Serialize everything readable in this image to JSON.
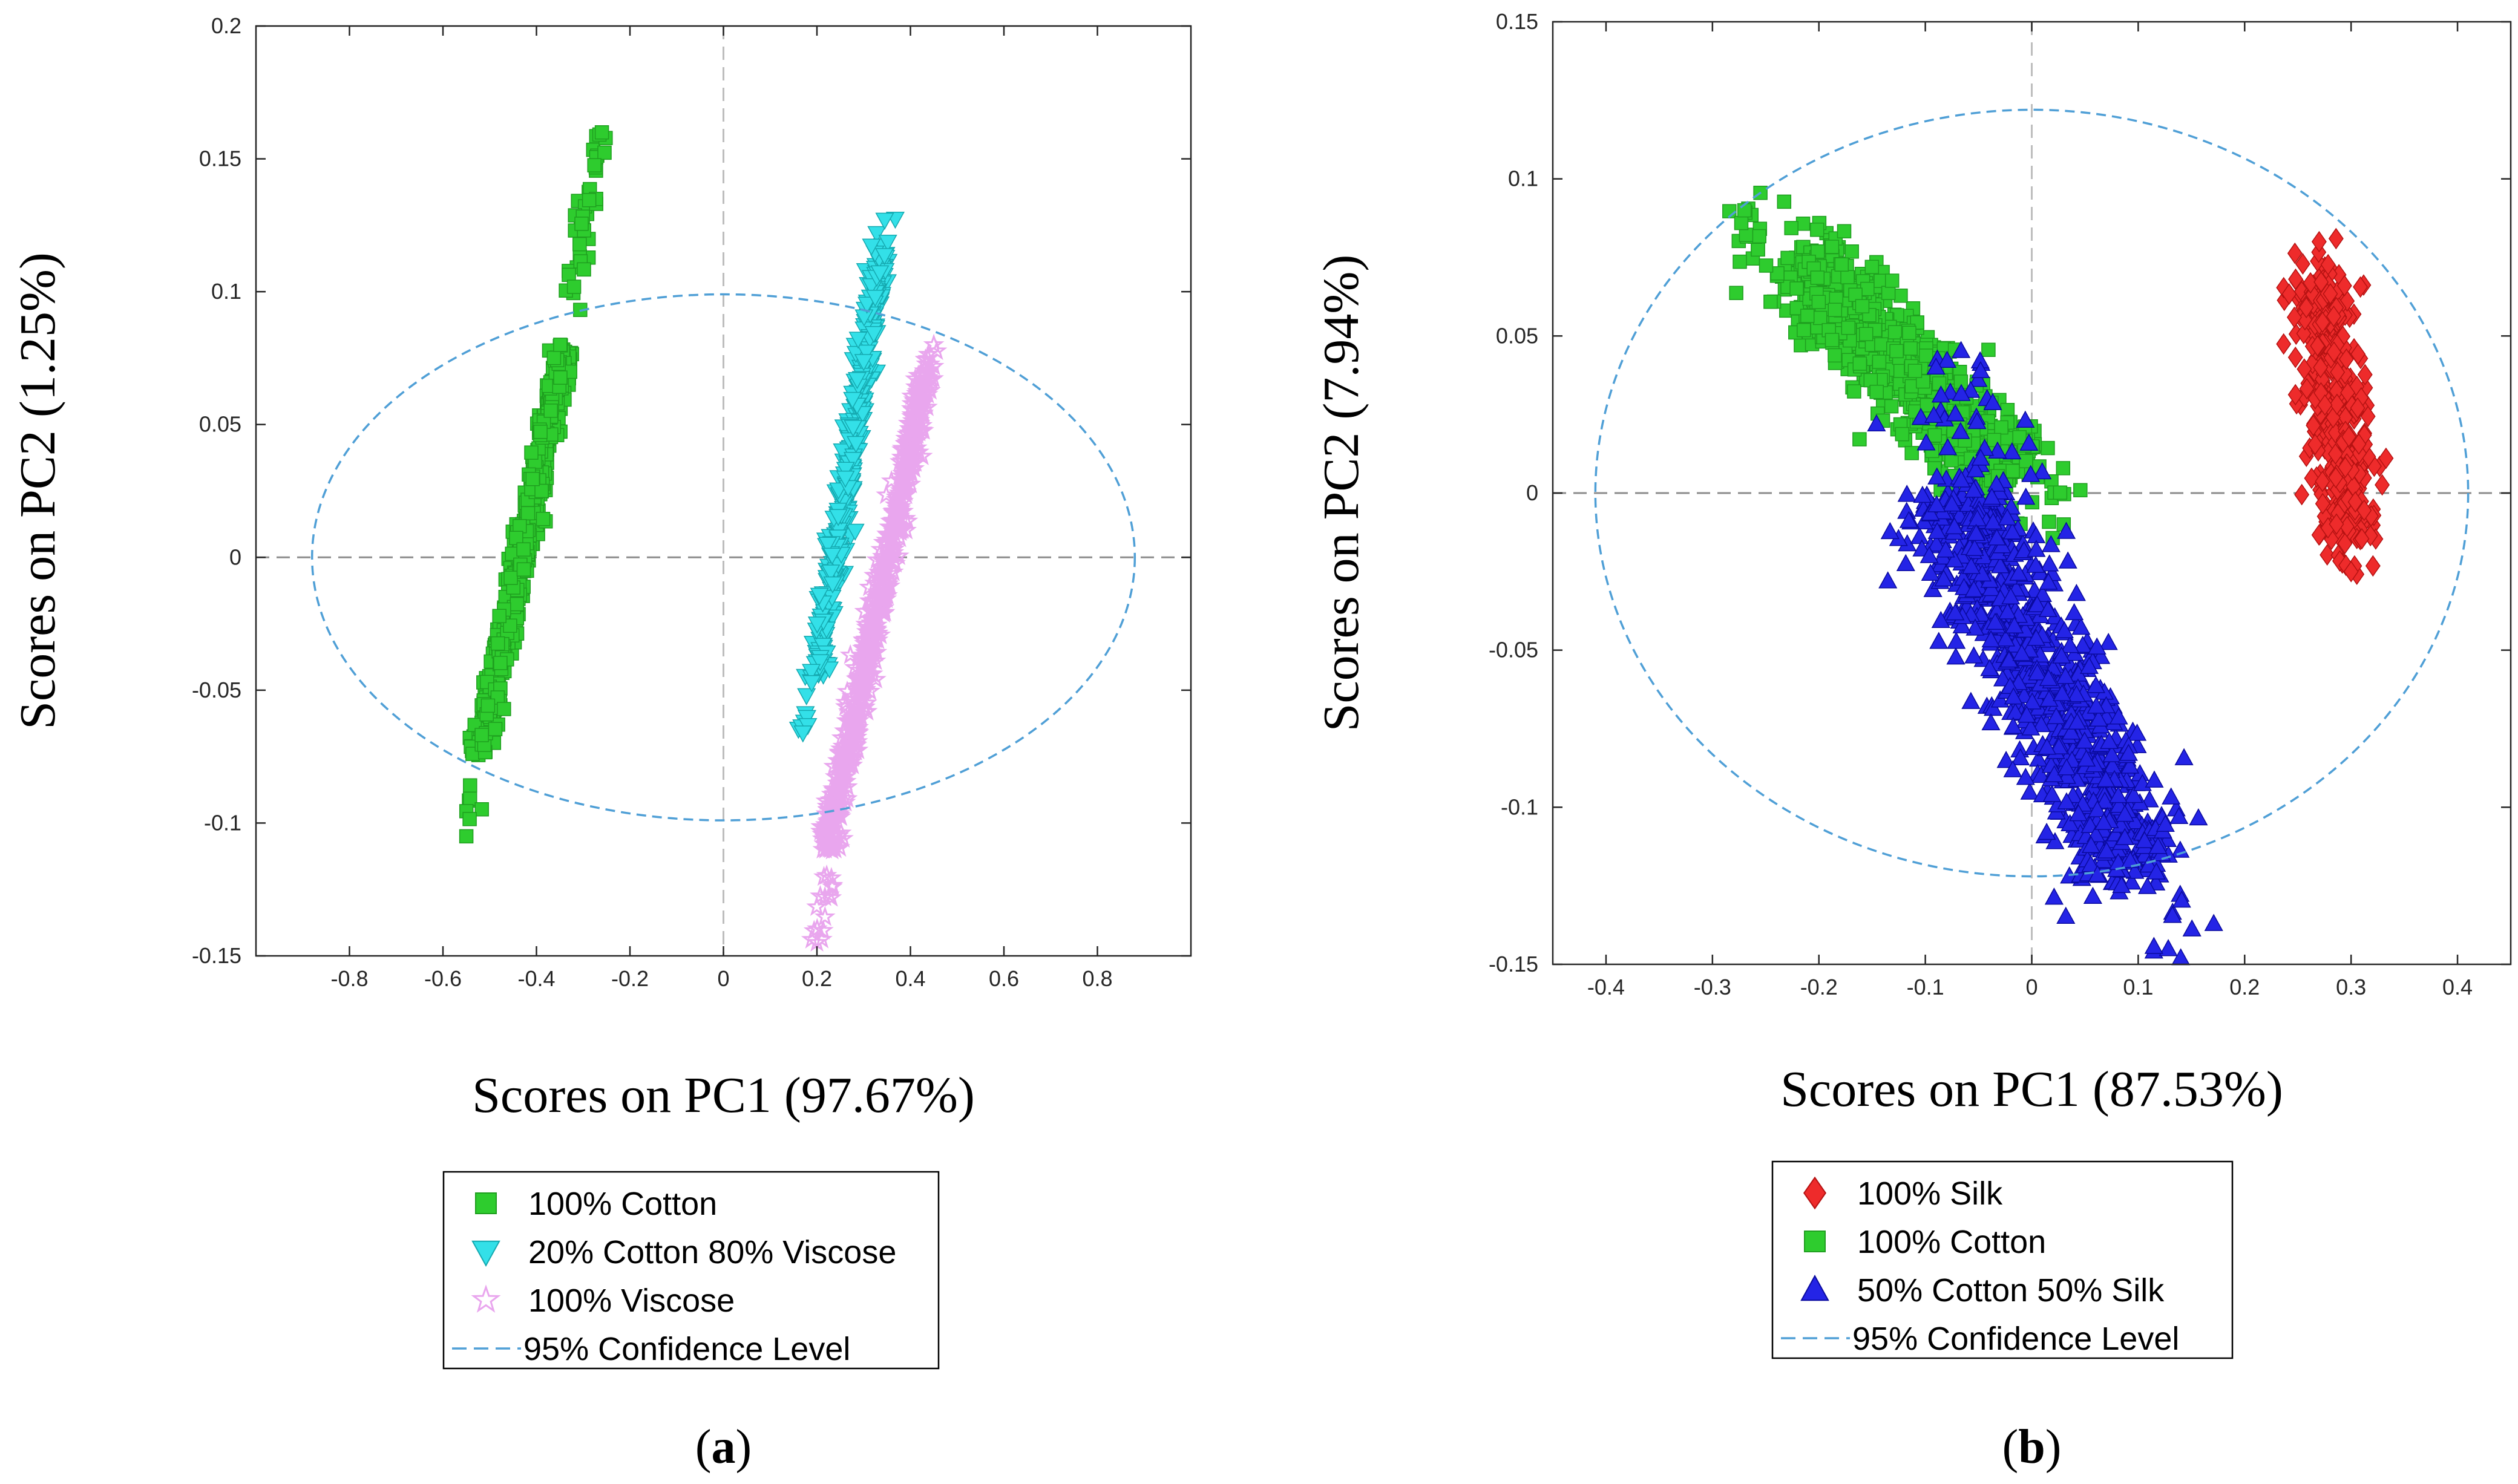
{
  "chart_data": [
    {
      "type": "scatter",
      "panel_label": "a",
      "xlabel": "Scores on PC1 (97.67%)",
      "ylabel": "Scores on PC2 (1.25%)",
      "xlim": [
        -1.0,
        1.0
      ],
      "ylim": [
        -0.15,
        0.2
      ],
      "xticks": [
        -0.8,
        -0.6,
        -0.4,
        -0.2,
        0,
        0.2,
        0.4,
        0.6,
        0.8
      ],
      "xtick_labels": [
        "-0.8",
        "-0.6",
        "-0.4",
        "-0.2",
        "0",
        "0.2",
        "0.4",
        "0.6",
        "0.8"
      ],
      "yticks": [
        -0.15,
        -0.1,
        -0.05,
        0,
        0.05,
        0.1,
        0.15,
        0.2
      ],
      "ytick_labels": [
        "-0.15",
        "-0.1",
        "-0.05",
        "0",
        "0.05",
        "0.1",
        "0.15",
        "0.2"
      ],
      "confidence_ellipse": {
        "center": [
          0,
          0
        ],
        "semi_axis_x": 0.88,
        "semi_axis_y": 0.099,
        "color": "#4f9fd6"
      },
      "series": [
        {
          "name": "100% Cotton",
          "marker": "square",
          "color": "#2ecc2e",
          "edge": "#1f9e1f",
          "count": 700,
          "start": [
            -0.55,
            -0.105
          ],
          "end": [
            -0.26,
            0.16
          ],
          "core_start": [
            -0.52,
            -0.075
          ],
          "core_end": [
            -0.34,
            0.08
          ],
          "spread": 0.022
        },
        {
          "name": "20% Cotton 80% Viscose",
          "marker": "triangle-down",
          "color": "#33e0e8",
          "edge": "#15a9b0",
          "count": 500,
          "start": [
            0.17,
            -0.066
          ],
          "end": [
            0.345,
            0.127
          ],
          "core_start": [
            0.2,
            -0.045
          ],
          "core_end": [
            0.34,
            0.115
          ],
          "spread": 0.018
        },
        {
          "name": "100% Viscose",
          "marker": "star",
          "color": "#e9a6ee",
          "edge": "#b45cc0",
          "count": 650,
          "start": [
            0.2,
            -0.145
          ],
          "end": [
            0.45,
            0.08
          ],
          "core_start": [
            0.22,
            -0.11
          ],
          "core_end": [
            0.44,
            0.075
          ],
          "spread": 0.02
        }
      ],
      "legend": [
        "100% Cotton",
        "20% Cotton 80% Viscose",
        "100% Viscose",
        "95% Confidence Level"
      ]
    },
    {
      "type": "scatter",
      "panel_label": "b",
      "xlabel": "Scores on PC1 (87.53%)",
      "ylabel": "Scores on PC2 (7.94%)",
      "xlim": [
        -0.45,
        0.45
      ],
      "ylim": [
        -0.15,
        0.15
      ],
      "xticks": [
        -0.4,
        -0.3,
        -0.2,
        -0.1,
        0,
        0.1,
        0.2,
        0.3,
        0.4
      ],
      "xtick_labels": [
        "-0.4",
        "-0.3",
        "-0.2",
        "-0.1",
        "0",
        "0.1",
        "0.2",
        "0.3",
        "0.4"
      ],
      "yticks": [
        -0.15,
        -0.1,
        -0.05,
        0,
        0.05,
        0.1,
        0.15
      ],
      "ytick_labels": [
        "-0.15",
        "-0.1",
        "-0.05",
        "0",
        "0.05",
        "0.1",
        "0.15"
      ],
      "confidence_ellipse": {
        "center": [
          0,
          0
        ],
        "semi_axis_x": 0.41,
        "semi_axis_y": 0.122,
        "color": "#4f9fd6"
      },
      "series": [
        {
          "name": "100% Silk",
          "marker": "diamond",
          "color": "#ee2b2b",
          "edge": "#b51212",
          "count": 500,
          "start": [
            0.3,
            -0.025
          ],
          "end": [
            0.27,
            0.08
          ],
          "core_start": [
            0.3,
            -0.015
          ],
          "core_end": [
            0.27,
            0.07
          ],
          "spread": 0.028
        },
        {
          "name": "100% Cotton",
          "marker": "square",
          "color": "#2ecc2e",
          "edge": "#1f9e1f",
          "count": 900,
          "start": [
            -0.27,
            0.09
          ],
          "end": [
            0.03,
            -0.01
          ],
          "core_start": [
            -0.22,
            0.075
          ],
          "core_end": [
            -0.02,
            0.005
          ],
          "spread": 0.04
        },
        {
          "name": "50% Cotton 50% Silk",
          "marker": "triangle-up",
          "color": "#2424e6",
          "edge": "#0a0a9e",
          "count": 1000,
          "start": [
            -0.09,
            0.04
          ],
          "end": [
            0.14,
            -0.148
          ],
          "core_start": [
            -0.08,
            0.0
          ],
          "core_end": [
            0.1,
            -0.12
          ],
          "spread": 0.055
        }
      ],
      "legend": [
        "100% Silk",
        "100% Cotton",
        "50% Cotton 50% Silk",
        "95% Confidence Level"
      ]
    }
  ]
}
